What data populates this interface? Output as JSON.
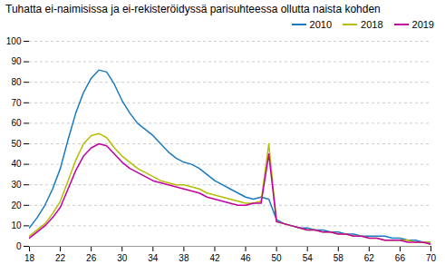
{
  "chart_data": {
    "type": "line",
    "title": "Tuhatta ei-naimisissa ja ei-rekisteröidyssä parisuhteessa ollutta naista kohden",
    "x": [
      18,
      19,
      20,
      21,
      22,
      23,
      24,
      25,
      26,
      27,
      28,
      29,
      30,
      31,
      32,
      33,
      34,
      35,
      36,
      37,
      38,
      39,
      40,
      41,
      42,
      43,
      44,
      45,
      46,
      47,
      48,
      49,
      50,
      51,
      52,
      53,
      54,
      55,
      56,
      57,
      58,
      59,
      60,
      61,
      62,
      63,
      64,
      65,
      66,
      67,
      68,
      69,
      70
    ],
    "series": [
      {
        "name": "2010",
        "color": "#1a7abf",
        "values": [
          9,
          14,
          20,
          28,
          38,
          52,
          65,
          75,
          82,
          86,
          85,
          79,
          71,
          65,
          60,
          57,
          54,
          50,
          46,
          43,
          41,
          40,
          38,
          35,
          32,
          30,
          28,
          26,
          24,
          23,
          24,
          23,
          13,
          11,
          10,
          9,
          9,
          8,
          8,
          7,
          7,
          6,
          6,
          5,
          5,
          5,
          5,
          4,
          4,
          3,
          3,
          2,
          2
        ]
      },
      {
        "name": "2018",
        "color": "#b5bd00",
        "values": [
          5,
          8,
          11,
          16,
          22,
          32,
          42,
          50,
          54,
          55,
          53,
          48,
          44,
          41,
          38,
          36,
          34,
          32,
          31,
          30,
          30,
          29,
          28,
          26,
          25,
          24,
          23,
          22,
          21,
          21,
          22,
          50,
          12,
          11,
          10,
          9,
          8,
          8,
          7,
          7,
          6,
          6,
          5,
          5,
          4,
          4,
          3,
          3,
          3,
          3,
          2,
          2,
          2
        ]
      },
      {
        "name": "2019",
        "color": "#c000a0",
        "values": [
          4,
          7,
          10,
          14,
          19,
          28,
          37,
          44,
          48,
          50,
          49,
          45,
          41,
          38,
          36,
          34,
          32,
          31,
          30,
          29,
          28,
          27,
          26,
          24,
          23,
          22,
          21,
          20,
          20,
          21,
          21,
          45,
          12,
          11,
          10,
          9,
          8,
          8,
          7,
          7,
          6,
          6,
          5,
          5,
          4,
          4,
          3,
          3,
          3,
          2,
          2,
          2,
          1
        ]
      }
    ],
    "xlim": [
      18,
      70
    ],
    "xticks": [
      18,
      22,
      26,
      30,
      34,
      38,
      42,
      46,
      50,
      54,
      58,
      62,
      66,
      70
    ],
    "ylim": [
      0,
      100
    ],
    "yticks": [
      0,
      10,
      20,
      30,
      40,
      50,
      60,
      70,
      80,
      90,
      100
    ],
    "grid": true,
    "legend": "upper right"
  }
}
